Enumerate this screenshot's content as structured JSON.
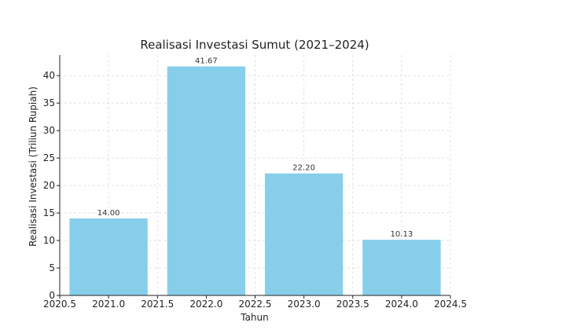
{
  "chart_data": {
    "type": "bar",
    "title": "Realisasi Investasi Sumut (2021–2024)",
    "xlabel": "Tahun",
    "ylabel": "Realisasi Investasi (Triliun Rupiah)",
    "x": [
      2021,
      2022,
      2023,
      2024
    ],
    "values": [
      14.0,
      41.67,
      22.2,
      10.13
    ],
    "data_labels": [
      "14.00",
      "41.67",
      "22.20",
      "10.13"
    ],
    "bar_width": 0.8,
    "xlim": [
      2020.5,
      2024.5
    ],
    "ylim": [
      0,
      43.75
    ],
    "xticks": [
      2020.5,
      2021.0,
      2021.5,
      2022.0,
      2022.5,
      2023.0,
      2023.5,
      2024.0,
      2024.5
    ],
    "xtick_labels": [
      "2020.5",
      "2021.0",
      "2021.5",
      "2022.0",
      "2022.5",
      "2023.0",
      "2023.5",
      "2024.0",
      "2024.5"
    ],
    "yticks": [
      0,
      5,
      10,
      15,
      20,
      25,
      30,
      35,
      40
    ],
    "ytick_labels": [
      "0",
      "5",
      "10",
      "15",
      "20",
      "25",
      "30",
      "35",
      "40"
    ],
    "grid": true,
    "bar_color": "#87CEEB"
  }
}
